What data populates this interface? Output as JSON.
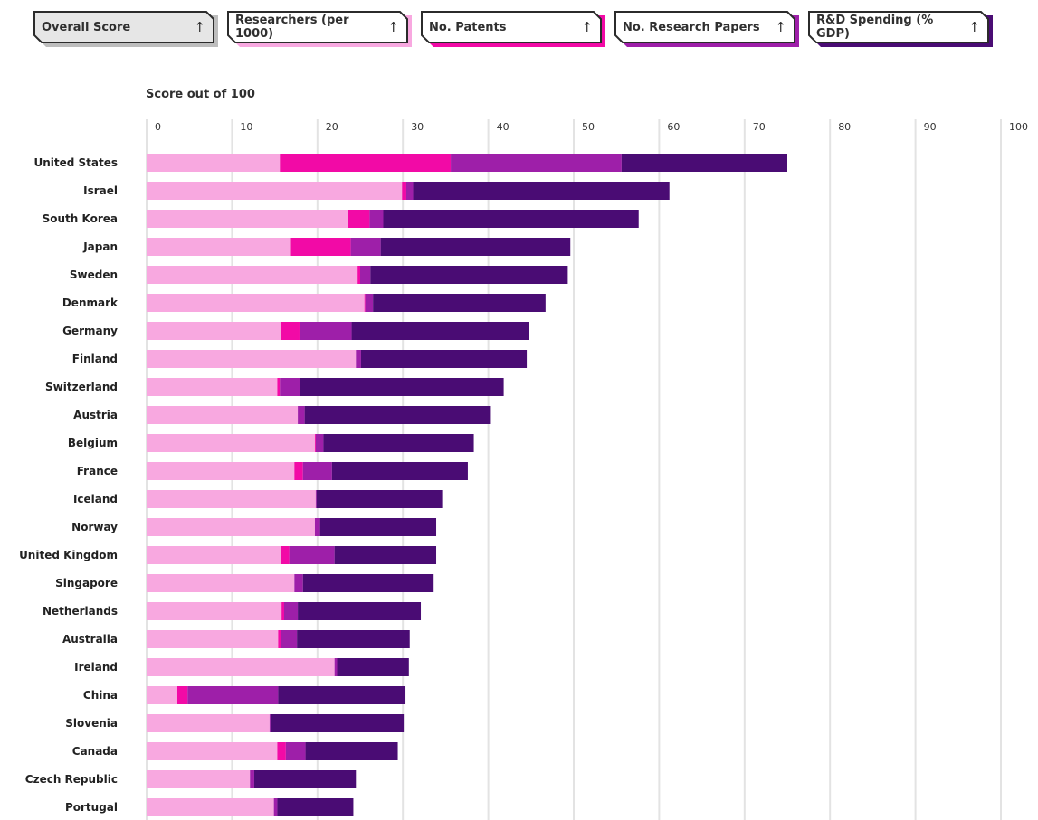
{
  "sort_buttons": [
    {
      "label": "Overall Score",
      "arrow": "↑",
      "color": "#d9d9d9",
      "active": true
    },
    {
      "label": "Researchers (per 1000)",
      "arrow": "↑",
      "color": "#f8a8e0",
      "active": false
    },
    {
      "label": "No. Patents",
      "arrow": "↑",
      "color": "#f20aa6",
      "active": false
    },
    {
      "label": "No. Research Papers",
      "arrow": "↑",
      "color": "#9e1fa9",
      "active": false
    },
    {
      "label": "R&D Spending (% GDP)",
      "arrow": "↑",
      "color": "#4a0c74",
      "active": false
    }
  ],
  "chart_data": {
    "type": "bar",
    "orientation": "horizontal",
    "stacked": true,
    "title": "Score out of 100",
    "xlabel": "",
    "ylabel": "",
    "xlim": [
      0,
      100
    ],
    "x_ticks": [
      "0",
      "10",
      "20",
      "30",
      "40",
      "50",
      "60",
      "70",
      "80",
      "90",
      "100"
    ],
    "grid": true,
    "categories": [
      "United States",
      "Israel",
      "South Korea",
      "Japan",
      "Sweden",
      "Denmark",
      "Germany",
      "Finland",
      "Switzerland",
      "Austria",
      "Belgium",
      "France",
      "Iceland",
      "Norway",
      "United Kingdom",
      "Singapore",
      "Netherlands",
      "Australia",
      "Ireland",
      "China",
      "Slovenia",
      "Canada",
      "Czech Republic",
      "Portugal"
    ],
    "series": [
      {
        "name": "Researchers (per 1000)",
        "color": "#f8a8e0",
        "values": [
          15.6,
          29.9,
          23.6,
          16.9,
          24.7,
          25.5,
          15.7,
          24.5,
          15.3,
          17.7,
          19.7,
          17.3,
          19.8,
          19.7,
          15.7,
          17.3,
          15.8,
          15.4,
          22.0,
          3.6,
          14.4,
          15.3,
          12.1,
          14.9
        ]
      },
      {
        "name": "No. Patents",
        "color": "#f20aa6",
        "values": [
          20.0,
          0.5,
          2.5,
          7.0,
          0.3,
          0.1,
          2.2,
          0.0,
          0.3,
          0.0,
          0.1,
          1.0,
          0.0,
          0.0,
          1.0,
          0.0,
          0.3,
          0.3,
          0.0,
          1.2,
          0.0,
          1.0,
          0.0,
          0.0
        ]
      },
      {
        "name": "No. Research Papers",
        "color": "#9e1fa9",
        "values": [
          20.0,
          0.8,
          1.6,
          3.5,
          1.2,
          0.9,
          6.1,
          0.6,
          2.4,
          0.8,
          0.9,
          3.4,
          0.1,
          0.6,
          5.3,
          1.0,
          1.6,
          1.9,
          0.3,
          10.6,
          0.1,
          2.3,
          0.5,
          0.4
        ]
      },
      {
        "name": "R&D Spending (% GDP)",
        "color": "#4a0c74",
        "values": [
          19.4,
          30.0,
          29.9,
          22.2,
          23.1,
          20.2,
          20.8,
          19.4,
          23.8,
          21.8,
          17.6,
          15.9,
          14.7,
          13.6,
          11.9,
          15.3,
          14.4,
          13.2,
          8.4,
          14.9,
          15.6,
          10.8,
          11.9,
          8.9
        ]
      }
    ]
  }
}
